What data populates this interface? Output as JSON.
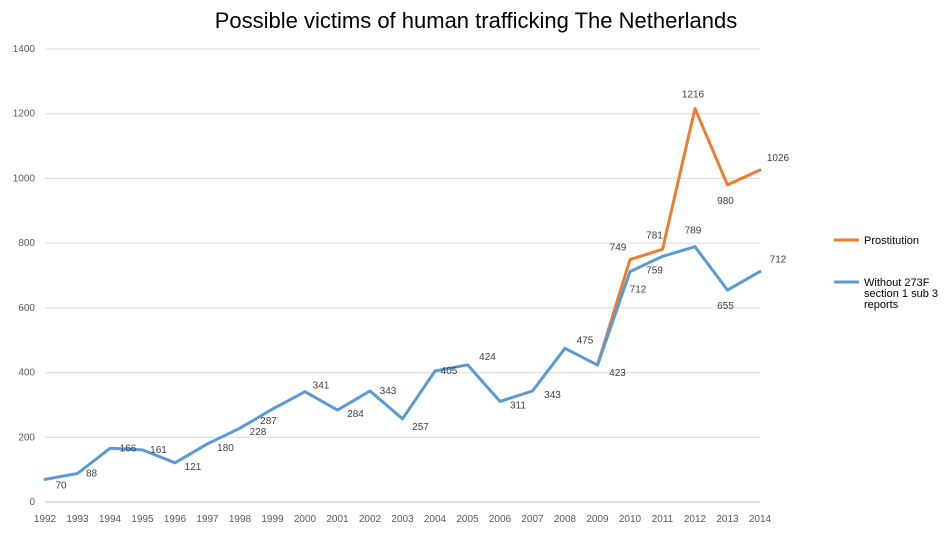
{
  "chart_data": {
    "type": "line",
    "title": "Possible victims of human trafficking The Netherlands",
    "xlabel": "",
    "ylabel": "",
    "x": [
      "1992",
      "1993",
      "1994",
      "1995",
      "1996",
      "1997",
      "1998",
      "1999",
      "2000",
      "2001",
      "2002",
      "2003",
      "2004",
      "2005",
      "2006",
      "2007",
      "2008",
      "2009",
      "2010",
      "2011",
      "2012",
      "2013",
      "2014"
    ],
    "ylim": [
      0,
      1400
    ],
    "yticks": [
      0,
      200,
      400,
      600,
      800,
      1000,
      1200,
      1400
    ],
    "grid": true,
    "legend_position": "right",
    "series": [
      {
        "name": "Prostitution",
        "color": "#ED7D31",
        "values": [
          null,
          null,
          null,
          null,
          null,
          null,
          null,
          null,
          null,
          null,
          null,
          null,
          null,
          null,
          null,
          null,
          null,
          423,
          749,
          781,
          1216,
          980,
          1026
        ],
        "labels": [
          null,
          null,
          null,
          null,
          null,
          null,
          null,
          null,
          null,
          null,
          null,
          null,
          null,
          null,
          null,
          null,
          null,
          null,
          "749",
          "781",
          "1216",
          "980",
          "1026"
        ]
      },
      {
        "name": "Without 273F section 1 sub 3 reports",
        "legend_lines": [
          "Without 273F",
          "section 1 sub 3",
          "reports"
        ],
        "color": "#5B9BD5",
        "values": [
          70,
          88,
          166,
          161,
          121,
          180,
          228,
          287,
          341,
          284,
          343,
          257,
          405,
          424,
          311,
          343,
          475,
          423,
          712,
          759,
          789,
          655,
          712
        ],
        "labels": [
          "70",
          "88",
          "166",
          "161",
          "121",
          "180",
          "228",
          "287",
          "341",
          "284",
          "343",
          "257",
          "405",
          "424",
          "311",
          "343",
          "475",
          "423",
          "712",
          "759",
          "789",
          "655",
          "712"
        ]
      }
    ]
  }
}
